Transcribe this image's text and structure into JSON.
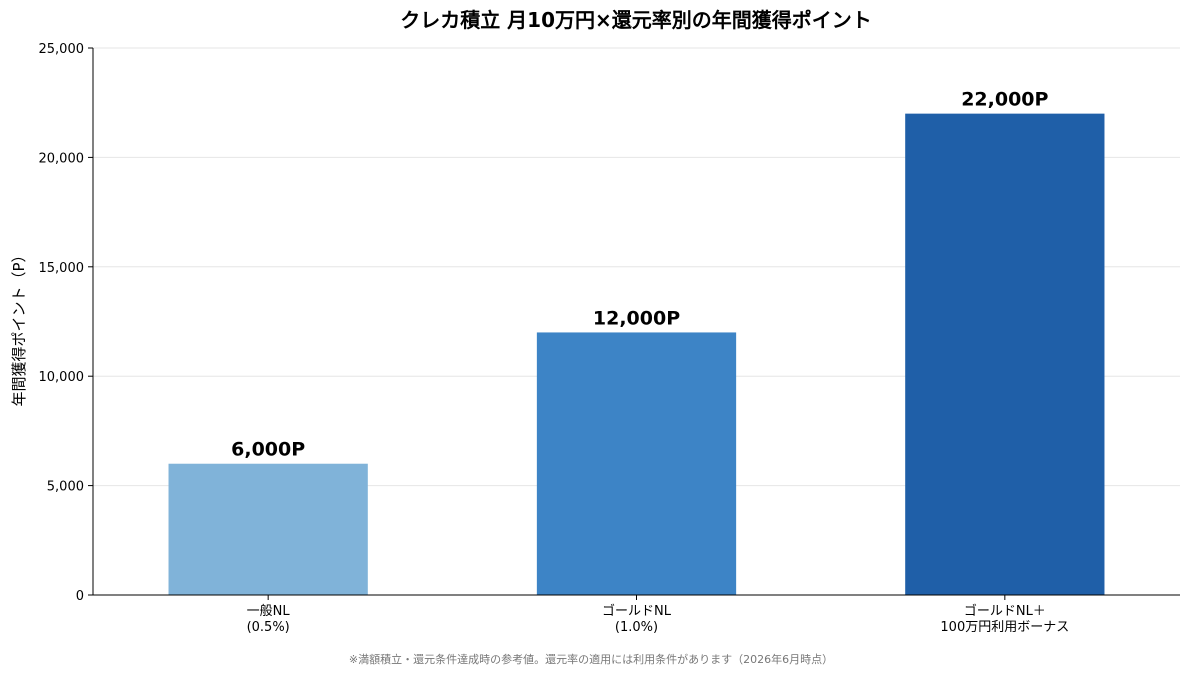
{
  "chart_data": {
    "type": "bar",
    "title": "クレカ積立 月10万円×還元率別の年間獲得ポイント",
    "xlabel": "",
    "ylabel": "年間獲得ポイント（P）",
    "ylim": [
      0,
      25000
    ],
    "yticks": [
      0,
      5000,
      10000,
      15000,
      20000,
      25000
    ],
    "ytick_labels": [
      "0",
      "5,000",
      "10,000",
      "15,000",
      "20,000",
      "25,000"
    ],
    "grid": true,
    "categories": [
      [
        "一般NL",
        "(0.5%)"
      ],
      [
        "ゴールドNL",
        "(1.0%)"
      ],
      [
        "ゴールドNL＋",
        "100万円利用ボーナス"
      ]
    ],
    "values": [
      6000,
      12000,
      22000
    ],
    "data_labels": [
      "6,000P",
      "12,000P",
      "22,000P"
    ],
    "colors": [
      "#80b3d9",
      "#3d84c6",
      "#1f5fa8"
    ],
    "footnote": "※満額積立・還元条件達成時の参考値。還元率の適用には利用条件があります（2026年6月時点）"
  }
}
